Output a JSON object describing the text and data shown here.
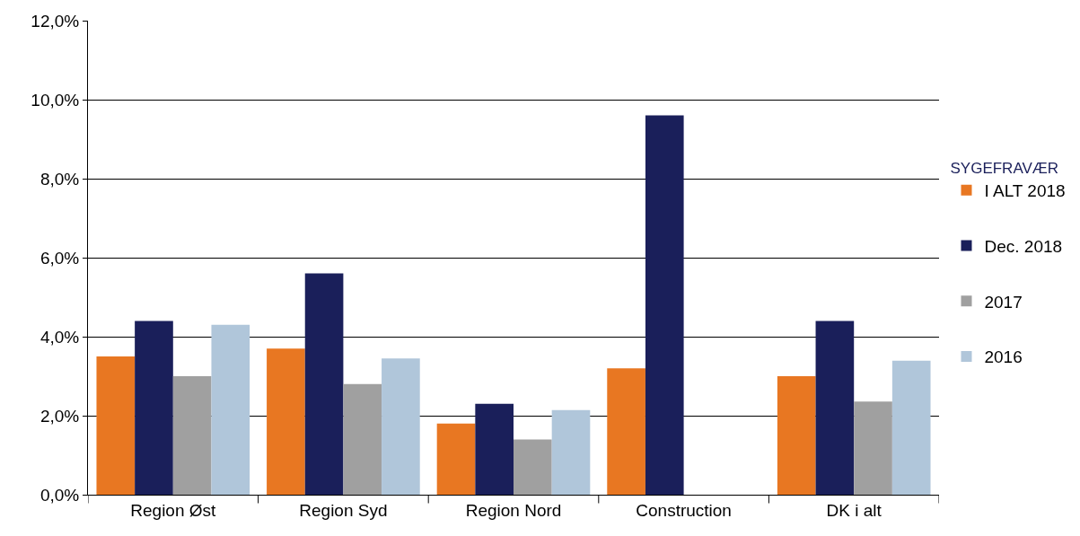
{
  "chart_data": {
    "type": "bar",
    "categories": [
      "Region Øst",
      "Region Syd",
      "Region Nord",
      "Construction",
      "DK i alt"
    ],
    "series": [
      {
        "name": "I ALT 2018",
        "color": "#e87722",
        "values": [
          3.5,
          3.7,
          1.8,
          3.2,
          3.0
        ]
      },
      {
        "name": "Dec. 2018",
        "color": "#1a1f5a",
        "values": [
          4.4,
          5.6,
          2.3,
          9.6,
          4.4
        ]
      },
      {
        "name": "2017",
        "color": "#a0a0a0",
        "values": [
          3.0,
          2.8,
          1.4,
          null,
          2.36
        ]
      },
      {
        "name": "2016",
        "color": "#b0c6da",
        "values": [
          4.3,
          3.45,
          2.14,
          null,
          3.39
        ]
      }
    ],
    "legend_title": "SYGEFRAVÆR",
    "ylim": [
      0,
      12
    ],
    "yticks": [
      {
        "value": 0,
        "label": "0,0%"
      },
      {
        "value": 2,
        "label": "2,0%"
      },
      {
        "value": 4,
        "label": "4,0%"
      },
      {
        "value": 6,
        "label": "6,0%"
      },
      {
        "value": 8,
        "label": "8,0%"
      },
      {
        "value": 10,
        "label": "10,0%"
      },
      {
        "value": 12,
        "label": "12,0%"
      }
    ],
    "grid": "y",
    "legend": "right"
  }
}
